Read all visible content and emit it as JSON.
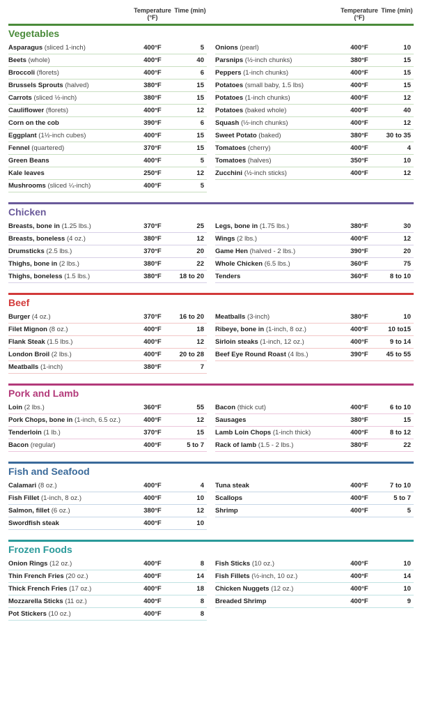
{
  "headers": {
    "temp": "Temperature (°F)",
    "time": "Time (min)"
  },
  "sections": [
    {
      "title": "Vegetables",
      "color": "#4a8b3a",
      "rowBorder": "#c8dfc0",
      "left": [
        {
          "name": "Asparagus",
          "note": "(sliced 1-inch)",
          "temp": "400°F",
          "time": "5"
        },
        {
          "name": "Beets",
          "note": "(whole)",
          "temp": "400°F",
          "time": "40"
        },
        {
          "name": "Broccoli",
          "note": "(florets)",
          "temp": "400°F",
          "time": "6"
        },
        {
          "name": "Brussels Sprouts",
          "note": "(halved)",
          "temp": "380°F",
          "time": "15"
        },
        {
          "name": "Carrots",
          "note": "(sliced ½-inch)",
          "temp": "380°F",
          "time": "15"
        },
        {
          "name": "Cauliflower",
          "note": "(florets)",
          "temp": "400°F",
          "time": "12"
        },
        {
          "name": "Corn on the cob",
          "note": "",
          "temp": "390°F",
          "time": "6"
        },
        {
          "name": "Eggplant",
          "note": "(1½-inch cubes)",
          "temp": "400°F",
          "time": "15"
        },
        {
          "name": "Fennel",
          "note": "(quartered)",
          "temp": "370°F",
          "time": "15"
        },
        {
          "name": "Green Beans",
          "note": "",
          "temp": "400°F",
          "time": "5"
        },
        {
          "name": "Kale leaves",
          "note": "",
          "temp": "250°F",
          "time": "12"
        },
        {
          "name": "Mushrooms",
          "note": "(sliced ¼-inch)",
          "temp": "400°F",
          "time": "5"
        }
      ],
      "right": [
        {
          "name": "Onions",
          "note": "(pearl)",
          "temp": "400°F",
          "time": "10"
        },
        {
          "name": "Parsnips",
          "note": "(½-inch chunks)",
          "temp": "380°F",
          "time": "15"
        },
        {
          "name": "Peppers",
          "note": "(1-inch chunks)",
          "temp": "400°F",
          "time": "15"
        },
        {
          "name": "Potatoes",
          "note": "(small baby, 1.5 lbs)",
          "temp": "400°F",
          "time": "15"
        },
        {
          "name": "Potatoes",
          "note": "(1-inch chunks)",
          "temp": "400°F",
          "time": "12"
        },
        {
          "name": "Potatoes",
          "note": "(baked whole)",
          "temp": "400°F",
          "time": "40"
        },
        {
          "name": "Squash",
          "note": "(½-inch chunks)",
          "temp": "400°F",
          "time": "12"
        },
        {
          "name": "Sweet Potato",
          "note": "(baked)",
          "temp": "380°F",
          "time": "30 to 35"
        },
        {
          "name": "Tomatoes",
          "note": "(cherry)",
          "temp": "400°F",
          "time": "4"
        },
        {
          "name": "Tomatoes",
          "note": "(halves)",
          "temp": "350°F",
          "time": "10"
        },
        {
          "name": "Zucchini",
          "note": "(½-inch sticks)",
          "temp": "400°F",
          "time": "12"
        }
      ]
    },
    {
      "title": "Chicken",
      "color": "#6a5a9a",
      "rowBorder": "#d6cfe6",
      "left": [
        {
          "name": "Breasts, bone in",
          "note": "(1.25 lbs.)",
          "temp": "370°F",
          "time": "25"
        },
        {
          "name": "Breasts, boneless",
          "note": "(4 oz.)",
          "temp": "380°F",
          "time": "12"
        },
        {
          "name": "Drumsticks",
          "note": "(2.5 lbs.)",
          "temp": "370°F",
          "time": "20"
        },
        {
          "name": "Thighs, bone in",
          "note": "(2 lbs.)",
          "temp": "380°F",
          "time": "22"
        },
        {
          "name": "Thighs, boneless",
          "note": "(1.5 lbs.)",
          "temp": "380°F",
          "time": "18 to 20"
        }
      ],
      "right": [
        {
          "name": "Legs, bone in",
          "note": "(1.75 lbs.)",
          "temp": "380°F",
          "time": "30"
        },
        {
          "name": "Wings",
          "note": "(2 lbs.)",
          "temp": "400°F",
          "time": "12"
        },
        {
          "name": "Game Hen",
          "note": "(halved - 2 lbs.)",
          "temp": "390°F",
          "time": "20"
        },
        {
          "name": "Whole Chicken",
          "note": "(6.5 lbs.)",
          "temp": "360°F",
          "time": "75"
        },
        {
          "name": "Tenders",
          "note": "",
          "temp": "360°F",
          "time": "8 to 10"
        }
      ]
    },
    {
      "title": "Beef",
      "color": "#d23a3a",
      "rowBorder": "#f2c6c6",
      "left": [
        {
          "name": "Burger",
          "note": "(4 oz.)",
          "temp": "370°F",
          "time": "16 to 20"
        },
        {
          "name": "Filet Mignon",
          "note": "(8 oz.)",
          "temp": "400°F",
          "time": "18"
        },
        {
          "name": "Flank Steak",
          "note": "(1.5 lbs.)",
          "temp": "400°F",
          "time": "12"
        },
        {
          "name": "London Broil",
          "note": "(2 lbs.)",
          "temp": "400°F",
          "time": "20 to 28"
        },
        {
          "name": "Meatballs",
          "note": "(1-inch)",
          "temp": "380°F",
          "time": "7"
        }
      ],
      "right": [
        {
          "name": "Meatballs",
          "note": "(3-inch)",
          "temp": "380°F",
          "time": "10"
        },
        {
          "name": "Ribeye, bone in",
          "note": "(1-inch, 8 oz.)",
          "temp": "400°F",
          "time": "10 to15"
        },
        {
          "name": "Sirloin steaks",
          "note": "(1-inch, 12 oz.)",
          "temp": "400°F",
          "time": "9 to 14"
        },
        {
          "name": "Beef Eye Round Roast",
          "note": "(4 lbs.)",
          "temp": "390°F",
          "time": "45 to 55"
        }
      ]
    },
    {
      "title": "Pork and Lamb",
      "color": "#b33a7a",
      "rowBorder": "#ecc6dc",
      "left": [
        {
          "name": "Loin",
          "note": "(2 lbs.)",
          "temp": "360°F",
          "time": "55"
        },
        {
          "name": "Pork Chops, bone in",
          "note": "(1-inch, 6.5 oz.)",
          "temp": "400°F",
          "time": "12"
        },
        {
          "name": "Tenderloin",
          "note": "(1 lb.)",
          "temp": "370°F",
          "time": "15"
        },
        {
          "name": "Bacon",
          "note": "(regular)",
          "temp": "400°F",
          "time": "5 to 7"
        }
      ],
      "right": [
        {
          "name": "Bacon",
          "note": "(thick cut)",
          "temp": "400°F",
          "time": "6 to 10"
        },
        {
          "name": "Sausages",
          "note": "",
          "temp": "380°F",
          "time": "15"
        },
        {
          "name": "Lamb Loin Chops",
          "note": "(1-inch thick)",
          "temp": "400°F",
          "time": "8 to 12"
        },
        {
          "name": "Rack of lamb",
          "note": "(1.5 - 2 lbs.)",
          "temp": "380°F",
          "time": "22"
        }
      ]
    },
    {
      "title": "Fish and Seafood",
      "color": "#3a6a9a",
      "rowBorder": "#c6d6e6",
      "left": [
        {
          "name": "Calamari",
          "note": "(8 oz.)",
          "temp": "400°F",
          "time": "4"
        },
        {
          "name": "Fish Fillet",
          "note": "(1-inch, 8 oz.)",
          "temp": "400°F",
          "time": "10"
        },
        {
          "name": "Salmon, fillet",
          "note": "(6 oz.)",
          "temp": "380°F",
          "time": "12"
        },
        {
          "name": "Swordfish steak",
          "note": "",
          "temp": "400°F",
          "time": "10"
        }
      ],
      "right": [
        {
          "name": "Tuna steak",
          "note": "",
          "temp": "400°F",
          "time": "7 to 10"
        },
        {
          "name": "Scallops",
          "note": "",
          "temp": "400°F",
          "time": "5 to 7"
        },
        {
          "name": "Shrimp",
          "note": "",
          "temp": "400°F",
          "time": "5"
        }
      ]
    },
    {
      "title": "Frozen Foods",
      "color": "#2a9a9a",
      "rowBorder": "#bfe2e2",
      "left": [
        {
          "name": "Onion Rings",
          "note": "(12 oz.)",
          "temp": "400°F",
          "time": "8"
        },
        {
          "name": "Thin French Fries",
          "note": "(20 oz.)",
          "temp": "400°F",
          "time": "14"
        },
        {
          "name": "Thick French Fries",
          "note": "(17 oz.)",
          "temp": "400°F",
          "time": "18"
        },
        {
          "name": "Mozzarella Sticks",
          "note": "(11 oz.)",
          "temp": "400°F",
          "time": "8"
        },
        {
          "name": "Pot Stickers",
          "note": "(10 oz.)",
          "temp": "400°F",
          "time": "8"
        }
      ],
      "right": [
        {
          "name": "Fish Sticks",
          "note": "(10 oz.)",
          "temp": "400°F",
          "time": "10"
        },
        {
          "name": "Fish Fillets",
          "note": "(½-inch, 10 oz.)",
          "temp": "400°F",
          "time": "14"
        },
        {
          "name": "Chicken Nuggets",
          "note": "(12 oz.)",
          "temp": "400°F",
          "time": "10"
        },
        {
          "name": "Breaded Shrimp",
          "note": "",
          "temp": "400°F",
          "time": "9"
        }
      ]
    }
  ]
}
